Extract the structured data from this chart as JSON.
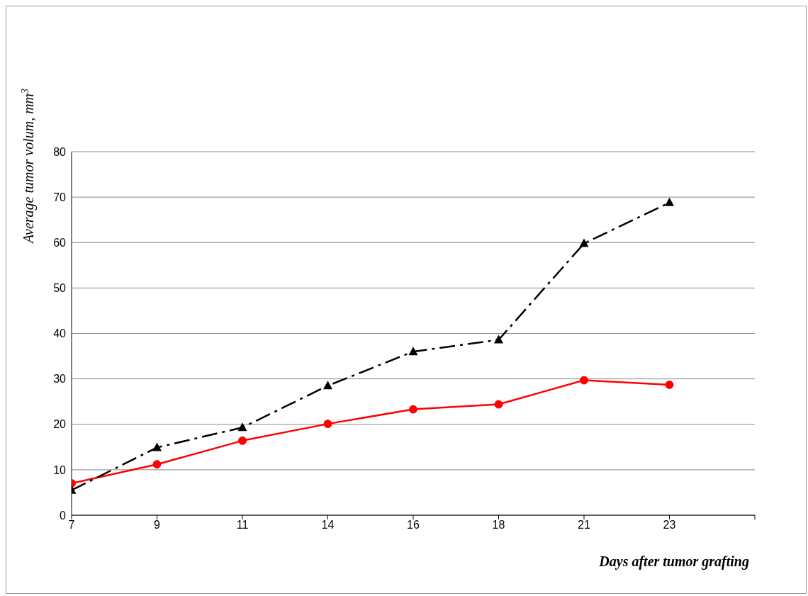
{
  "chart_data": {
    "type": "line",
    "xlabel": "Days after tumor grafting",
    "ylabel": "Average tumor volum, mm$^{3}$",
    "categories": [
      "7",
      "9",
      "11",
      "14",
      "16",
      "18",
      "21",
      "23",
      null
    ],
    "series": [
      {
        "color": "#ff0000",
        "marker": "circle",
        "line_style": "solid",
        "values": [
          7.0,
          11.2,
          16.4,
          20.1,
          23.3,
          24.4,
          29.7,
          28.7,
          null
        ]
      },
      {
        "color": "#000000",
        "marker": "triangle",
        "line_style": "dashed",
        "values": [
          5.5,
          14.9,
          19.3,
          28.5,
          36.0,
          38.6,
          59.8,
          68.8,
          null
        ]
      }
    ],
    "ylim": [
      0,
      80
    ],
    "yticks": [
      0,
      10,
      20,
      30,
      40,
      50,
      60,
      70,
      80
    ],
    "grid": "y",
    "legend": false
  }
}
